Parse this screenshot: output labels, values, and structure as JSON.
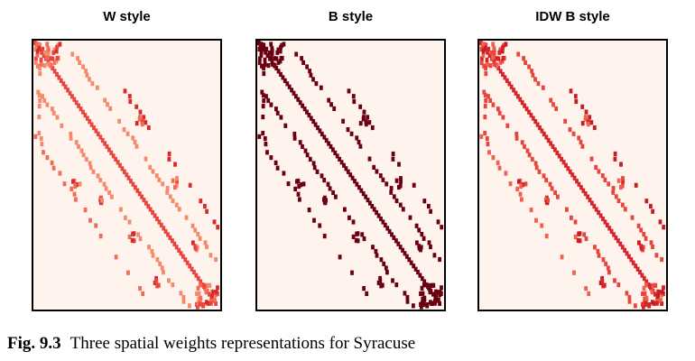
{
  "panels": [
    {
      "title": "W style",
      "palette": [
        "#e8453d",
        "#f58a6a",
        "#d92a2a",
        "#f36b56"
      ]
    },
    {
      "title": "B style",
      "palette": [
        "#6b0010",
        "#6b0010",
        "#6b0010",
        "#6b0010"
      ]
    },
    {
      "title": "IDW B style",
      "palette": [
        "#d6242a",
        "#e8453d",
        "#c41d24",
        "#f0604a"
      ]
    }
  ],
  "caption": {
    "label": "Fig. 9.3",
    "text": "Three spatial weights representations for Syracuse"
  }
}
